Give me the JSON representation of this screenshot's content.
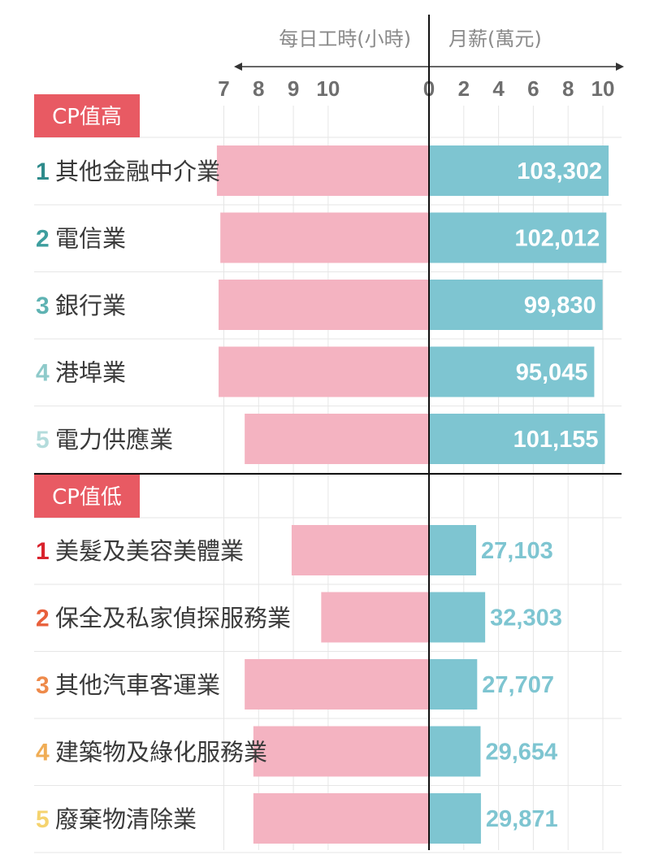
{
  "chart_data": {
    "type": "bar",
    "left_axis_label": "每日工時(小時)",
    "right_axis_label": "月薪(萬元)",
    "left_ticks": [
      "10",
      "9",
      "8",
      "7"
    ],
    "zero_tick": "0",
    "right_ticks": [
      "2",
      "4",
      "6",
      "8",
      "10"
    ],
    "sections": [
      {
        "label": "CP值高",
        "rows": [
          {
            "rank": "1",
            "industry": "其他金融中介業",
            "hours": 6.8,
            "salary": 103302,
            "salary_label": "103,302"
          },
          {
            "rank": "2",
            "industry": "電信業",
            "hours": 6.9,
            "salary": 102012,
            "salary_label": "102,012"
          },
          {
            "rank": "3",
            "industry": "銀行業",
            "hours": 6.85,
            "salary": 99830,
            "salary_label": "99,830"
          },
          {
            "rank": "4",
            "industry": "港埠業",
            "hours": 6.85,
            "salary": 95045,
            "salary_label": "95,045"
          },
          {
            "rank": "5",
            "industry": "電力供應業",
            "hours": 7.6,
            "salary": 101155,
            "salary_label": "101,155"
          }
        ]
      },
      {
        "label": "CP值低",
        "rows": [
          {
            "rank": "1",
            "industry": "美髮及美容美體業",
            "hours": 8.95,
            "salary": 27103,
            "salary_label": "27,103"
          },
          {
            "rank": "2",
            "industry": "保全及私家偵探服務業",
            "hours": 9.8,
            "salary": 32303,
            "salary_label": "32,303"
          },
          {
            "rank": "3",
            "industry": "其他汽車客運業",
            "hours": 7.6,
            "salary": 27707,
            "salary_label": "27,707"
          },
          {
            "rank": "4",
            "industry": "建築物及綠化服務業",
            "hours": 7.85,
            "salary": 29654,
            "salary_label": "29,654"
          },
          {
            "rank": "5",
            "industry": "廢棄物清除業",
            "hours": 7.85,
            "salary": 29871,
            "salary_label": "29,871"
          }
        ]
      }
    ]
  },
  "colors": {
    "hours_bar": "#f4b3c1",
    "salary_bar": "#7ec5d1",
    "section_bg": "#e85a63",
    "value_on_bar": "#ffffff",
    "value_outside": "#7ec5d1",
    "rank_high": [
      "#2e8b8b",
      "#3e9e9e",
      "#5fb3b3",
      "#8ecaca",
      "#b4dcdc"
    ],
    "rank_low": [
      "#d9232d",
      "#e8603c",
      "#ee8a4a",
      "#f0ad55",
      "#f5d36e"
    ]
  }
}
